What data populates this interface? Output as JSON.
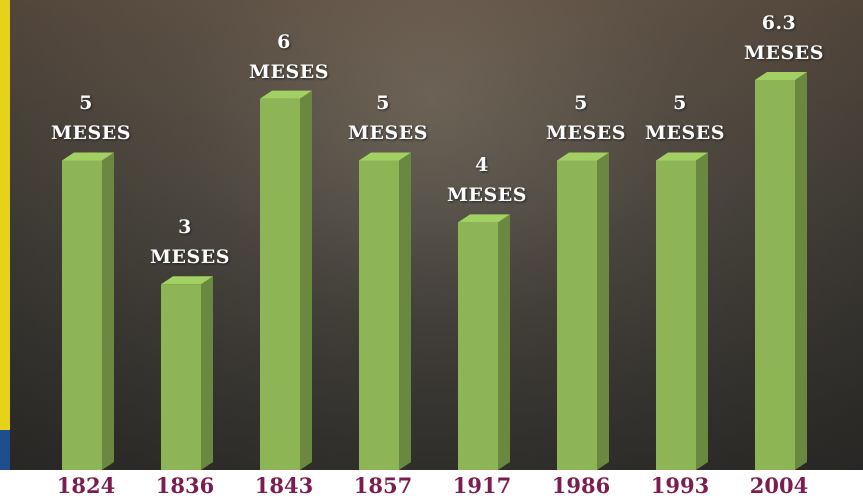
{
  "chart_data": {
    "type": "bar",
    "categories": [
      "1824",
      "1836",
      "1843",
      "1857",
      "1917",
      "1986",
      "1993",
      "2004"
    ],
    "values": [
      5,
      3,
      6,
      5,
      4,
      5,
      5,
      6.3
    ],
    "value_labels": [
      "5 MESES",
      "3 MESES",
      "6 MESES",
      "5 MESES",
      "4 MESES",
      "5 MESES",
      "5 MESES",
      "6.3 MESES"
    ],
    "color": "#8db555"
  }
}
